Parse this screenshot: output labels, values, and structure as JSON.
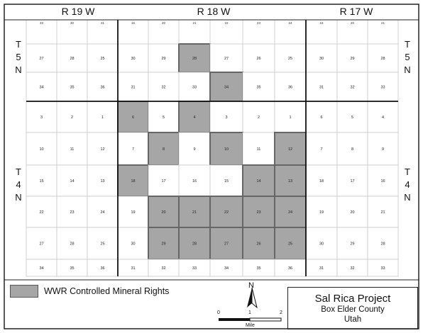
{
  "ranges": [
    "R 19 W",
    "R 18 W",
    "R 17 W"
  ],
  "townships": {
    "left_5n": [
      "T",
      "5",
      "N"
    ],
    "right_5n": [
      "T",
      "5",
      "N"
    ],
    "left_4n": [
      "T",
      "4",
      "N"
    ],
    "right_4n": [
      "T",
      "4",
      "N"
    ]
  },
  "top_partial_sections": [
    "33",
    "30",
    "31",
    "16",
    "20",
    "21",
    "22",
    "23",
    "24",
    "15",
    "20",
    "21"
  ],
  "sections": [
    [
      "27",
      "28",
      "25",
      "30",
      "29",
      "28",
      "27",
      "26",
      "25",
      "30",
      "29",
      "28"
    ],
    [
      "34",
      "35",
      "36",
      "31",
      "32",
      "33",
      "34",
      "35",
      "36",
      "31",
      "32",
      "33"
    ],
    [
      "3",
      "2",
      "1",
      "6",
      "5",
      "4",
      "3",
      "2",
      "1",
      "6",
      "5",
      "4"
    ],
    [
      "10",
      "11",
      "12",
      "7",
      "8",
      "9",
      "10",
      "11",
      "12",
      "7",
      "8",
      "9"
    ],
    [
      "15",
      "14",
      "13",
      "18",
      "17",
      "16",
      "15",
      "14",
      "13",
      "18",
      "17",
      "16"
    ],
    [
      "22",
      "23",
      "24",
      "19",
      "20",
      "21",
      "22",
      "23",
      "24",
      "19",
      "20",
      "21"
    ],
    [
      "27",
      "28",
      "25",
      "30",
      "29",
      "28",
      "27",
      "26",
      "25",
      "30",
      "29",
      "28"
    ],
    [
      "34",
      "35",
      "36",
      "31",
      "32",
      "33",
      "34",
      "35",
      "36",
      "31",
      "32",
      "33"
    ]
  ],
  "controlled_cells": [
    [
      0,
      5
    ],
    [
      1,
      6
    ],
    [
      2,
      3
    ],
    [
      2,
      5
    ],
    [
      3,
      4
    ],
    [
      3,
      6
    ],
    [
      3,
      8
    ],
    [
      4,
      3
    ],
    [
      4,
      7
    ],
    [
      4,
      8
    ],
    [
      5,
      4
    ],
    [
      5,
      5
    ],
    [
      5,
      6
    ],
    [
      5,
      7
    ],
    [
      5,
      8
    ],
    [
      6,
      4
    ],
    [
      6,
      5
    ],
    [
      6,
      6
    ],
    [
      6,
      7
    ],
    [
      6,
      8
    ]
  ],
  "controlled_color": "#a6a6a6",
  "legend": {
    "label": "WWR Controlled Mineral Rights"
  },
  "north_arrow": {
    "letter": "N"
  },
  "scale_bar": {
    "ticks": [
      "0",
      "1",
      "2"
    ],
    "unit": "Mile"
  },
  "title_box": {
    "title": "Sal Rica Project",
    "county": "Box Elder County",
    "state": "Utah"
  }
}
